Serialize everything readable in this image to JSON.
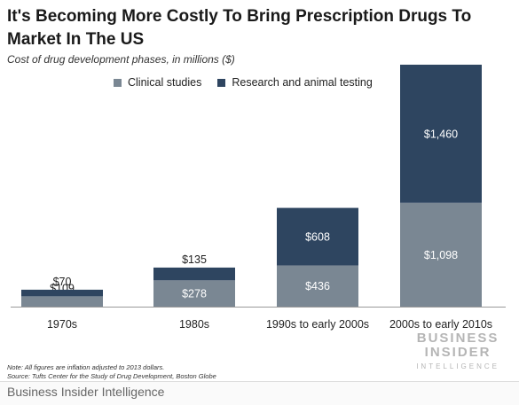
{
  "title": "It's Becoming More Costly To Bring Prescription Drugs To Market In The US",
  "subtitle": "Cost of drug development phases, in millions ($)",
  "colors": {
    "clinical": "#7a8793",
    "research": "#2e4560"
  },
  "chart_data": {
    "type": "bar",
    "stacked": true,
    "categories": [
      "1970s",
      "1980s",
      "1990s to early 2000s",
      "2000s to early 2010s"
    ],
    "series": [
      {
        "name": "Clinical studies",
        "values": [
          109,
          278,
          436,
          1098
        ],
        "labels": [
          "$109",
          "$278",
          "$436",
          "$1,098"
        ]
      },
      {
        "name": "Research and animal testing",
        "values": [
          70,
          135,
          608,
          1460
        ],
        "labels": [
          "$70",
          "$135",
          "$608",
          "$1,460"
        ]
      }
    ],
    "ylim": [
      0,
      2558
    ],
    "grid": false,
    "legend_position": "top"
  },
  "notes": {
    "note": "Note: All figures are inflation adjusted to 2013 dollars.",
    "source": "Source: Tufts Center for the Study of Drug Development, Boston Globe"
  },
  "brand": {
    "line1": "BUSINESS",
    "line2": "INSIDER",
    "line3": "INTELLIGENCE"
  },
  "footer": "Business Insider Intelligence"
}
